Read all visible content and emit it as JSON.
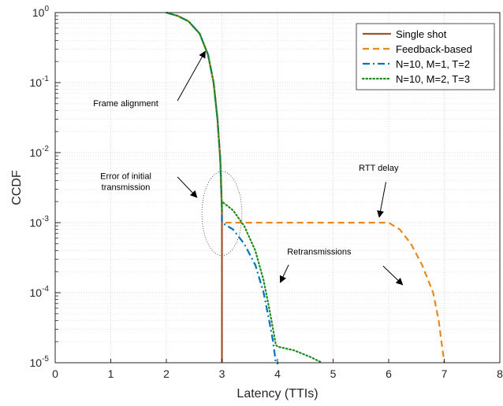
{
  "chart_data": {
    "type": "line",
    "xlabel": "Latency (TTIs)",
    "ylabel": "CCDF",
    "xlim": [
      0,
      8
    ],
    "ylim": [
      1e-05,
      1
    ],
    "yscale": "log",
    "grid": true,
    "legend_position": "top-right",
    "x_ticks": [
      "0",
      "1",
      "2",
      "3",
      "4",
      "5",
      "6",
      "7",
      "8"
    ],
    "y_ticks": [
      {
        "base": "10",
        "exp": "0",
        "value": 1
      },
      {
        "base": "10",
        "exp": "-1",
        "value": 0.1
      },
      {
        "base": "10",
        "exp": "-2",
        "value": 0.01
      },
      {
        "base": "10",
        "exp": "-3",
        "value": 0.001
      },
      {
        "base": "10",
        "exp": "-4",
        "value": 0.0001
      },
      {
        "base": "10",
        "exp": "-5",
        "value": 1e-05
      }
    ],
    "series": [
      {
        "name": "Single shot",
        "color": "#A0522D",
        "dash": "solid",
        "x": [
          2.0,
          2.2,
          2.4,
          2.6,
          2.75,
          2.85,
          2.92,
          2.97,
          3.0,
          3.0
        ],
        "y": [
          1.0,
          0.9,
          0.75,
          0.5,
          0.25,
          0.1,
          0.03,
          0.008,
          0.0015,
          1e-05
        ]
      },
      {
        "name": "Feedback-based",
        "color": "#E8891E",
        "dash": "dashed",
        "x": [
          2.0,
          2.2,
          2.4,
          2.6,
          2.75,
          2.85,
          2.92,
          2.97,
          3.0,
          3.0,
          6.0,
          6.2,
          6.4,
          6.6,
          6.8,
          6.9,
          6.97,
          7.0,
          7.0
        ],
        "y": [
          1.0,
          0.9,
          0.75,
          0.5,
          0.25,
          0.1,
          0.03,
          0.008,
          0.0015,
          0.001,
          0.001,
          0.0008,
          0.0005,
          0.00025,
          0.0001,
          4e-05,
          1.5e-05,
          1e-05,
          1e-05
        ]
      },
      {
        "name": "N=10, M=1, T=2",
        "color": "#0072BD",
        "dash": "dashdot",
        "x": [
          2.0,
          2.2,
          2.4,
          2.6,
          2.75,
          2.85,
          2.92,
          2.97,
          3.0,
          3.0,
          3.2,
          3.4,
          3.6,
          3.75,
          3.85,
          3.92,
          3.97,
          4.0,
          4.0
        ],
        "y": [
          1.0,
          0.9,
          0.75,
          0.5,
          0.25,
          0.1,
          0.03,
          0.008,
          0.0015,
          0.001,
          0.0008,
          0.0005,
          0.00025,
          0.0001,
          4e-05,
          2e-05,
          1e-05,
          7e-06,
          1e-05
        ]
      },
      {
        "name": "N=10, M=2, T=3",
        "color": "#1E8C1E",
        "dash": "dotted",
        "x": [
          2.0,
          2.2,
          2.4,
          2.6,
          2.75,
          2.85,
          2.92,
          2.97,
          3.0,
          3.0,
          3.2,
          3.4,
          3.6,
          3.75,
          3.85,
          3.92,
          3.97,
          4.0,
          4.0,
          4.3,
          4.6,
          4.8
        ],
        "y": [
          1.0,
          0.9,
          0.75,
          0.5,
          0.25,
          0.1,
          0.03,
          0.008,
          0.0015,
          0.002,
          0.0015,
          0.0009,
          0.0004,
          0.00015,
          6e-05,
          3e-05,
          1.8e-05,
          1.7e-05,
          1.7e-05,
          1.5e-05,
          1.2e-05,
          1e-05
        ]
      }
    ],
    "annotations": [
      {
        "lines": [
          "Frame alignment"
        ],
        "text_x": 1.27,
        "text_y": 0.046,
        "arrow_from": [
          2.2,
          0.055
        ],
        "arrow_to": [
          2.7,
          0.28
        ]
      },
      {
        "lines": [
          "Error of initial",
          "transmission"
        ],
        "text_x": 1.27,
        "text_y": 0.0042,
        "arrow_from": [
          2.2,
          0.0045
        ],
        "arrow_to": [
          2.55,
          0.0023
        ]
      },
      {
        "lines": [
          "RTT delay"
        ],
        "text_x": 5.82,
        "text_y": 0.0055,
        "arrow_from": [
          5.95,
          0.0038
        ],
        "arrow_to": [
          5.83,
          0.0012
        ]
      },
      {
        "lines": [
          "Retransmissions"
        ],
        "text_x": 4.75,
        "text_y": 0.00035,
        "arrow_from": [
          4.2,
          0.00025
        ],
        "arrow_to": [
          4.05,
          0.00014
        ]
      }
    ],
    "extra_arrows": [
      {
        "from": [
          5.9,
          0.00024
        ],
        "to": [
          6.25,
          0.00013
        ]
      }
    ],
    "highlight_circle": {
      "cx": 3.0,
      "cy": 0.00135,
      "rx": 0.36,
      "ry_decades": 0.6
    }
  }
}
